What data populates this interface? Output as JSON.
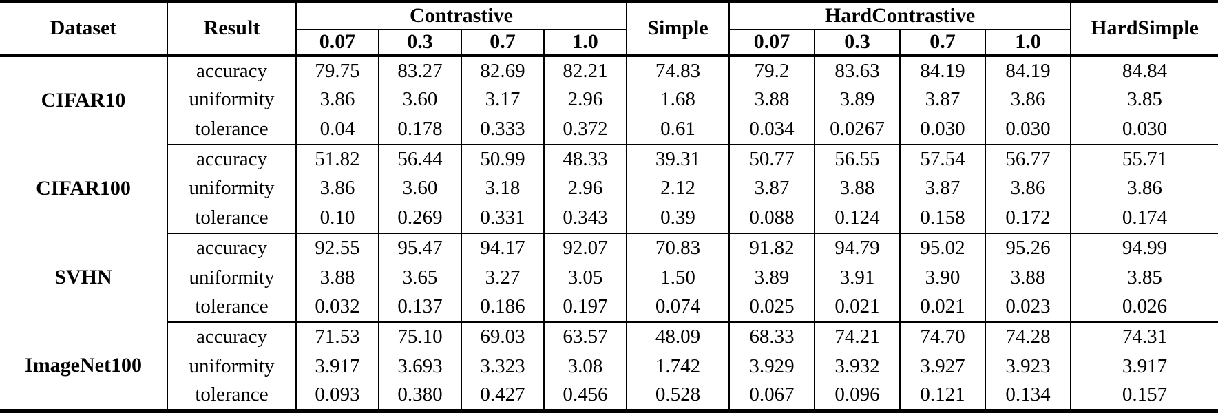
{
  "table": {
    "header": {
      "dataset": "Dataset",
      "result": "Result",
      "contrastive": "Contrastive",
      "simple": "Simple",
      "hard_contrastive": "HardContrastive",
      "hard_simple": "HardSimple",
      "contrastive_temperatures": [
        "0.07",
        "0.3",
        "0.7",
        "1.0"
      ],
      "hard_contrastive_temperatures": [
        "0.07",
        "0.3",
        "0.7",
        "1.0"
      ]
    },
    "groups": [
      {
        "dataset": "CIFAR10",
        "rows": [
          {
            "metric": "accuracy",
            "contrastive": [
              "79.75",
              "83.27",
              "82.69",
              "82.21"
            ],
            "simple": "74.83",
            "hard_contrastive": [
              "79.2",
              "83.63",
              "84.19",
              "84.19"
            ],
            "hard_simple": "84.84"
          },
          {
            "metric": "uniformity",
            "contrastive": [
              "3.86",
              "3.60",
              "3.17",
              "2.96"
            ],
            "simple": "1.68",
            "hard_contrastive": [
              "3.88",
              "3.89",
              "3.87",
              "3.86"
            ],
            "hard_simple": "3.85"
          },
          {
            "metric": "tolerance",
            "contrastive": [
              "0.04",
              "0.178",
              "0.333",
              "0.372"
            ],
            "simple": "0.61",
            "hard_contrastive": [
              "0.034",
              "0.0267",
              "0.030",
              "0.030"
            ],
            "hard_simple": "0.030"
          }
        ]
      },
      {
        "dataset": "CIFAR100",
        "rows": [
          {
            "metric": "accuracy",
            "contrastive": [
              "51.82",
              "56.44",
              "50.99",
              "48.33"
            ],
            "simple": "39.31",
            "hard_contrastive": [
              "50.77",
              "56.55",
              "57.54",
              "56.77"
            ],
            "hard_simple": "55.71"
          },
          {
            "metric": "uniformity",
            "contrastive": [
              "3.86",
              "3.60",
              "3.18",
              "2.96"
            ],
            "simple": "2.12",
            "hard_contrastive": [
              "3.87",
              "3.88",
              "3.87",
              "3.86"
            ],
            "hard_simple": "3.86"
          },
          {
            "metric": "tolerance",
            "contrastive": [
              "0.10",
              "0.269",
              "0.331",
              "0.343"
            ],
            "simple": "0.39",
            "hard_contrastive": [
              "0.088",
              "0.124",
              "0.158",
              "0.172"
            ],
            "hard_simple": "0.174"
          }
        ]
      },
      {
        "dataset": "SVHN",
        "rows": [
          {
            "metric": "accuracy",
            "contrastive": [
              "92.55",
              "95.47",
              "94.17",
              "92.07"
            ],
            "simple": "70.83",
            "hard_contrastive": [
              "91.82",
              "94.79",
              "95.02",
              "95.26"
            ],
            "hard_simple": "94.99"
          },
          {
            "metric": "uniformity",
            "contrastive": [
              "3.88",
              "3.65",
              "3.27",
              "3.05"
            ],
            "simple": "1.50",
            "hard_contrastive": [
              "3.89",
              "3.91",
              "3.90",
              "3.88"
            ],
            "hard_simple": "3.85"
          },
          {
            "metric": "tolerance",
            "contrastive": [
              "0.032",
              "0.137",
              "0.186",
              "0.197"
            ],
            "simple": "0.074",
            "hard_contrastive": [
              "0.025",
              "0.021",
              "0.021",
              "0.023"
            ],
            "hard_simple": "0.026"
          }
        ]
      },
      {
        "dataset": "ImageNet100",
        "rows": [
          {
            "metric": "accuracy",
            "contrastive": [
              "71.53",
              "75.10",
              "69.03",
              "63.57"
            ],
            "simple": "48.09",
            "hard_contrastive": [
              "68.33",
              "74.21",
              "74.70",
              "74.28"
            ],
            "hard_simple": "74.31"
          },
          {
            "metric": "uniformity",
            "contrastive": [
              "3.917",
              "3.693",
              "3.323",
              "3.08"
            ],
            "simple": "1.742",
            "hard_contrastive": [
              "3.929",
              "3.932",
              "3.927",
              "3.923"
            ],
            "hard_simple": "3.917"
          },
          {
            "metric": "tolerance",
            "contrastive": [
              "0.093",
              "0.380",
              "0.427",
              "0.456"
            ],
            "simple": "0.528",
            "hard_contrastive": [
              "0.067",
              "0.096",
              "0.121",
              "0.134"
            ],
            "hard_simple": "0.157"
          }
        ]
      }
    ]
  }
}
